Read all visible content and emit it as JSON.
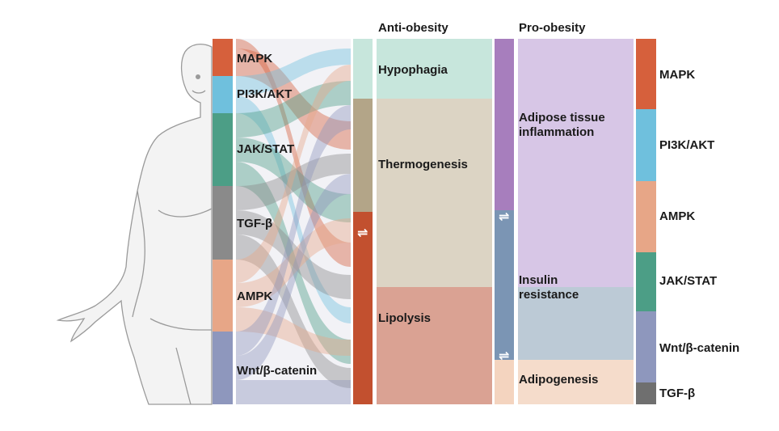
{
  "headers": {
    "anti_obesity": "Anti-obesity",
    "pro_obesity": "Pro-obesity"
  },
  "left_pathways": [
    {
      "label": "MAPK",
      "color": "#d6603c"
    },
    {
      "label": "PI3K/AKT",
      "color": "#6fc0dd"
    },
    {
      "label": "JAK/STAT",
      "color": "#4c9e86"
    },
    {
      "label": "TGF-β",
      "color": "#8a8a8a"
    },
    {
      "label": "AMPK",
      "color": "#e7a687"
    },
    {
      "label": "Wnt/β-catenin",
      "color": "#8e97bd"
    }
  ],
  "anti_obesity_outcomes": [
    {
      "label": "Hypophagia",
      "color": "#c7e6dc"
    },
    {
      "label": "Thermogenesis",
      "color": "#dcd4c4"
    },
    {
      "label": "Lipolysis",
      "color": "#daa293"
    }
  ],
  "pro_obesity_outcomes": [
    {
      "label": "Adipose tissue\ninflammation",
      "color": "#d7c6e6"
    },
    {
      "label": "Insulin\nresistance",
      "color": "#bccad6"
    },
    {
      "label": "Adipogenesis",
      "color": "#f5dccb"
    }
  ],
  "right_pathways": [
    {
      "label": "MAPK",
      "color": "#d6603c"
    },
    {
      "label": "PI3K/AKT",
      "color": "#6fc0dd"
    },
    {
      "label": "AMPK",
      "color": "#e7a687"
    },
    {
      "label": "JAK/STAT",
      "color": "#4c9e86"
    },
    {
      "label": "Wnt/β-catenin",
      "color": "#8e97bd"
    },
    {
      "label": "TGF-β",
      "color": "#6f6f6f"
    }
  ],
  "divider_symbol": "⇌"
}
